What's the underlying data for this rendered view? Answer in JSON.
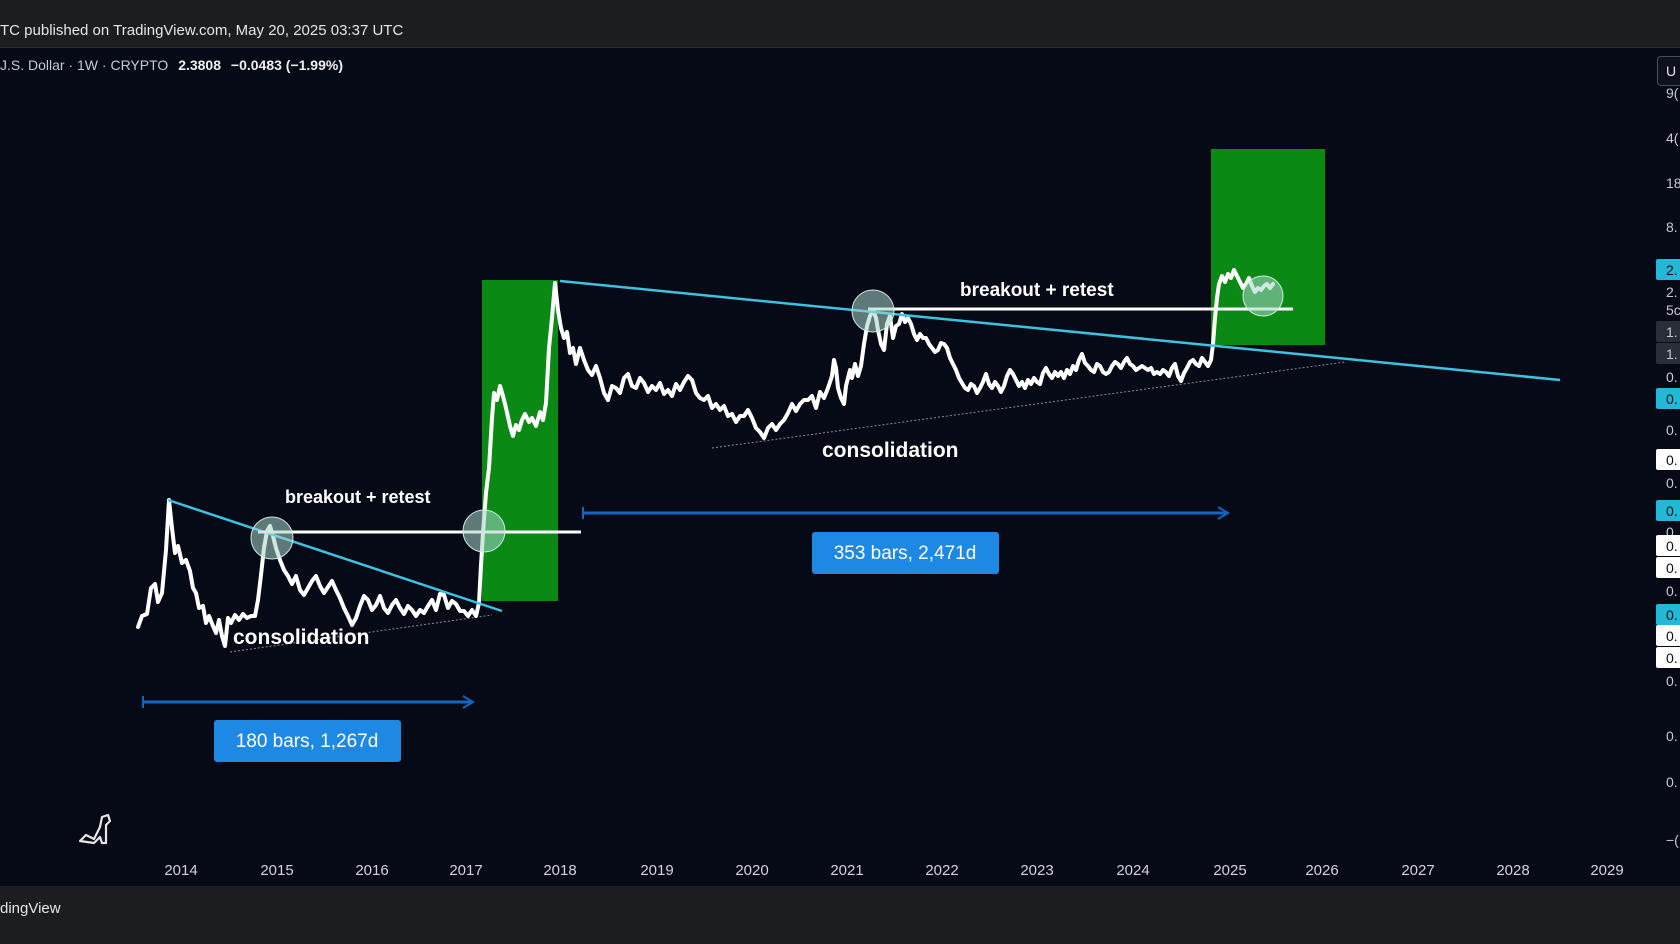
{
  "header": {
    "published": "TC published on TradingView.com, May 20, 2025 03:37 UTC"
  },
  "symbol": {
    "info": "J.S. Dollar · 1W · CRYPTO",
    "price": "2.3808",
    "change": "−0.0483 (−1.99%)"
  },
  "footer": {
    "brand": "dingView"
  },
  "scale_button": "U",
  "colors": {
    "background": "#060a17",
    "price_line": "#ffffff",
    "trendline": "#3cc3e0",
    "green_box": "#0a8a14",
    "label_box": "#1e88e5",
    "range_line": "#1565c0"
  },
  "icons": {
    "logo": "dino-logo-icon"
  },
  "chart_data": {
    "type": "line",
    "x_axis": {
      "type": "date",
      "range": [
        "2013-09-01",
        "2029-06-01"
      ],
      "ticks": [
        "2014",
        "2015",
        "2016",
        "2017",
        "2018",
        "2019",
        "2020",
        "2021",
        "2022",
        "2023",
        "2024",
        "2025",
        "2026",
        "2027",
        "2028",
        "2029"
      ]
    },
    "y_axis": {
      "scale": "log",
      "position": "right",
      "tick_labels": [
        "9(",
        "4(",
        "18",
        "8.",
        "2.",
        "2.",
        "5c",
        "1.",
        "1.",
        "0.",
        "0.",
        "0.",
        "0.",
        "0.",
        "0.",
        "0.",
        "0.",
        "0.",
        "0.",
        "0.",
        "0.",
        "0.",
        "0.",
        "0.",
        "0.",
        "−("
      ]
    },
    "annotations": {
      "texts": [
        {
          "text": "breakout + retest"
        },
        {
          "text": "consolidation"
        },
        {
          "text": "breakout + retest"
        },
        {
          "text": "consolidation"
        }
      ],
      "measure_labels": [
        "180 bars, 1,267d",
        "353 bars, 2,471d"
      ]
    }
  }
}
